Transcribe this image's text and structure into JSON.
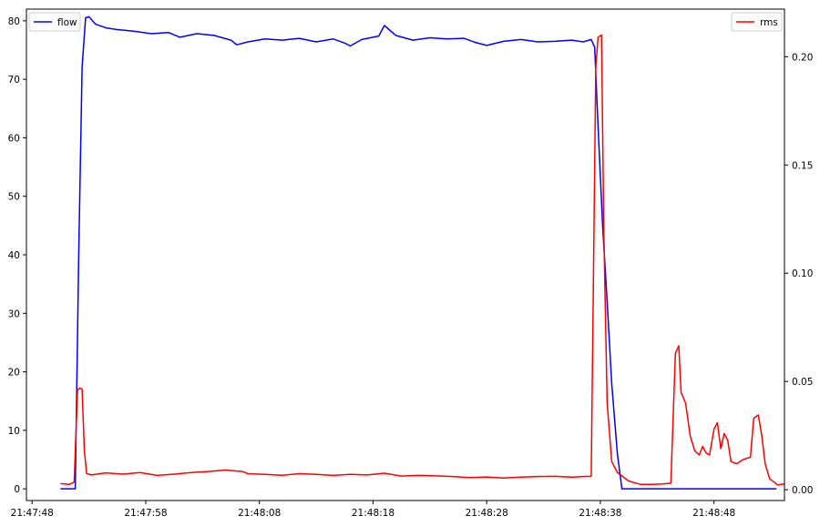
{
  "chart_data": {
    "type": "line",
    "title": "",
    "xlabel": "",
    "ylabel_left": "",
    "ylabel_right": "",
    "x_ticks": [
      "21:47:48",
      "21:47:58",
      "21:48:08",
      "21:48:18",
      "21:48:28",
      "21:48:38",
      "21:48:48"
    ],
    "x_tick_seconds": [
      0,
      10,
      20,
      30,
      40,
      50,
      60
    ],
    "xlim_seconds": [
      -0.5,
      66.2
    ],
    "y_left": {
      "lim": [
        -2,
        82
      ],
      "ticks": [
        0,
        10,
        20,
        30,
        40,
        50,
        60,
        70,
        80
      ]
    },
    "y_right": {
      "lim": [
        -0.005,
        0.222
      ],
      "ticks": [
        "0.00",
        "0.05",
        "0.10",
        "0.15",
        "0.20"
      ]
    },
    "legend": {
      "left": "top-left",
      "right": "top-right"
    },
    "series": [
      {
        "name": "flow",
        "axis": "left",
        "color": "#0000ff",
        "points": [
          [
            2.5,
            0
          ],
          [
            3.8,
            0
          ],
          [
            4.1,
            40
          ],
          [
            4.4,
            72
          ],
          [
            4.7,
            80.5
          ],
          [
            5.0,
            80.7
          ],
          [
            5.6,
            79.4
          ],
          [
            6.5,
            78.8
          ],
          [
            7.5,
            78.5
          ],
          [
            9.0,
            78.2
          ],
          [
            10.5,
            77.8
          ],
          [
            12.0,
            78.0
          ],
          [
            13.0,
            77.2
          ],
          [
            14.5,
            77.8
          ],
          [
            16.0,
            77.5
          ],
          [
            17.5,
            76.7
          ],
          [
            18.0,
            75.9
          ],
          [
            19.0,
            76.4
          ],
          [
            20.5,
            76.9
          ],
          [
            22.0,
            76.7
          ],
          [
            23.5,
            77.0
          ],
          [
            25.0,
            76.4
          ],
          [
            26.5,
            76.9
          ],
          [
            27.5,
            76.2
          ],
          [
            28.0,
            75.7
          ],
          [
            29.0,
            76.8
          ],
          [
            30.5,
            77.4
          ],
          [
            31.0,
            79.2
          ],
          [
            32.0,
            77.5
          ],
          [
            33.5,
            76.7
          ],
          [
            35.0,
            77.1
          ],
          [
            36.5,
            76.9
          ],
          [
            38.0,
            77.0
          ],
          [
            39.0,
            76.3
          ],
          [
            40.0,
            75.8
          ],
          [
            41.5,
            76.5
          ],
          [
            43.0,
            76.8
          ],
          [
            44.5,
            76.4
          ],
          [
            46.0,
            76.5
          ],
          [
            47.5,
            76.7
          ],
          [
            48.5,
            76.4
          ],
          [
            49.2,
            76.8
          ],
          [
            49.5,
            75.5
          ],
          [
            49.8,
            62
          ],
          [
            50.2,
            45
          ],
          [
            50.6,
            32
          ],
          [
            51.0,
            18
          ],
          [
            51.5,
            6
          ],
          [
            51.9,
            0
          ],
          [
            56.0,
            0
          ],
          [
            60.0,
            0
          ],
          [
            64.0,
            0
          ],
          [
            65.5,
            0
          ]
        ]
      },
      {
        "name": "rms",
        "axis": "right",
        "color": "#ff0000",
        "points": [
          [
            2.5,
            0.0028
          ],
          [
            3.3,
            0.0025
          ],
          [
            3.7,
            0.0035
          ],
          [
            4.0,
            0.046
          ],
          [
            4.2,
            0.047
          ],
          [
            4.4,
            0.0465
          ],
          [
            4.6,
            0.018
          ],
          [
            4.8,
            0.0075
          ],
          [
            5.2,
            0.0068
          ],
          [
            6.5,
            0.0078
          ],
          [
            8.0,
            0.0072
          ],
          [
            9.5,
            0.0079
          ],
          [
            11.0,
            0.0066
          ],
          [
            12.5,
            0.0072
          ],
          [
            14.0,
            0.0079
          ],
          [
            15.5,
            0.0084
          ],
          [
            17.0,
            0.0091
          ],
          [
            18.5,
            0.0084
          ],
          [
            19.0,
            0.0074
          ],
          [
            20.5,
            0.0071
          ],
          [
            22.0,
            0.0067
          ],
          [
            23.5,
            0.0074
          ],
          [
            25.0,
            0.0071
          ],
          [
            26.5,
            0.0066
          ],
          [
            28.0,
            0.0071
          ],
          [
            29.5,
            0.0068
          ],
          [
            31.0,
            0.0076
          ],
          [
            32.5,
            0.0063
          ],
          [
            34.0,
            0.0066
          ],
          [
            35.5,
            0.0064
          ],
          [
            37.0,
            0.0061
          ],
          [
            38.5,
            0.0056
          ],
          [
            40.0,
            0.0059
          ],
          [
            41.5,
            0.0054
          ],
          [
            43.0,
            0.0058
          ],
          [
            44.5,
            0.0061
          ],
          [
            46.0,
            0.0062
          ],
          [
            47.5,
            0.0058
          ],
          [
            48.5,
            0.0061
          ],
          [
            49.2,
            0.0062
          ],
          [
            49.4,
            0.1
          ],
          [
            49.6,
            0.195
          ],
          [
            49.8,
            0.209
          ],
          [
            50.1,
            0.21
          ],
          [
            50.3,
            0.12
          ],
          [
            50.6,
            0.04
          ],
          [
            51.0,
            0.013
          ],
          [
            51.5,
            0.008
          ],
          [
            52.5,
            0.004
          ],
          [
            53.5,
            0.0025
          ],
          [
            54.5,
            0.0025
          ],
          [
            55.5,
            0.0027
          ],
          [
            56.2,
            0.003
          ],
          [
            56.6,
            0.063
          ],
          [
            56.9,
            0.0665
          ],
          [
            57.1,
            0.045
          ],
          [
            57.5,
            0.04
          ],
          [
            57.9,
            0.025
          ],
          [
            58.3,
            0.018
          ],
          [
            58.7,
            0.016
          ],
          [
            59.0,
            0.02
          ],
          [
            59.3,
            0.017
          ],
          [
            59.6,
            0.016
          ],
          [
            60.0,
            0.028
          ],
          [
            60.3,
            0.031
          ],
          [
            60.6,
            0.019
          ],
          [
            60.9,
            0.026
          ],
          [
            61.2,
            0.023
          ],
          [
            61.5,
            0.013
          ],
          [
            62.0,
            0.012
          ],
          [
            62.6,
            0.014
          ],
          [
            63.2,
            0.015
          ],
          [
            63.5,
            0.033
          ],
          [
            63.9,
            0.0345
          ],
          [
            64.2,
            0.025
          ],
          [
            64.5,
            0.012
          ],
          [
            64.9,
            0.005
          ],
          [
            65.3,
            0.0035
          ],
          [
            65.6,
            0.0022
          ],
          [
            66.2,
            0.0027
          ]
        ]
      }
    ]
  }
}
